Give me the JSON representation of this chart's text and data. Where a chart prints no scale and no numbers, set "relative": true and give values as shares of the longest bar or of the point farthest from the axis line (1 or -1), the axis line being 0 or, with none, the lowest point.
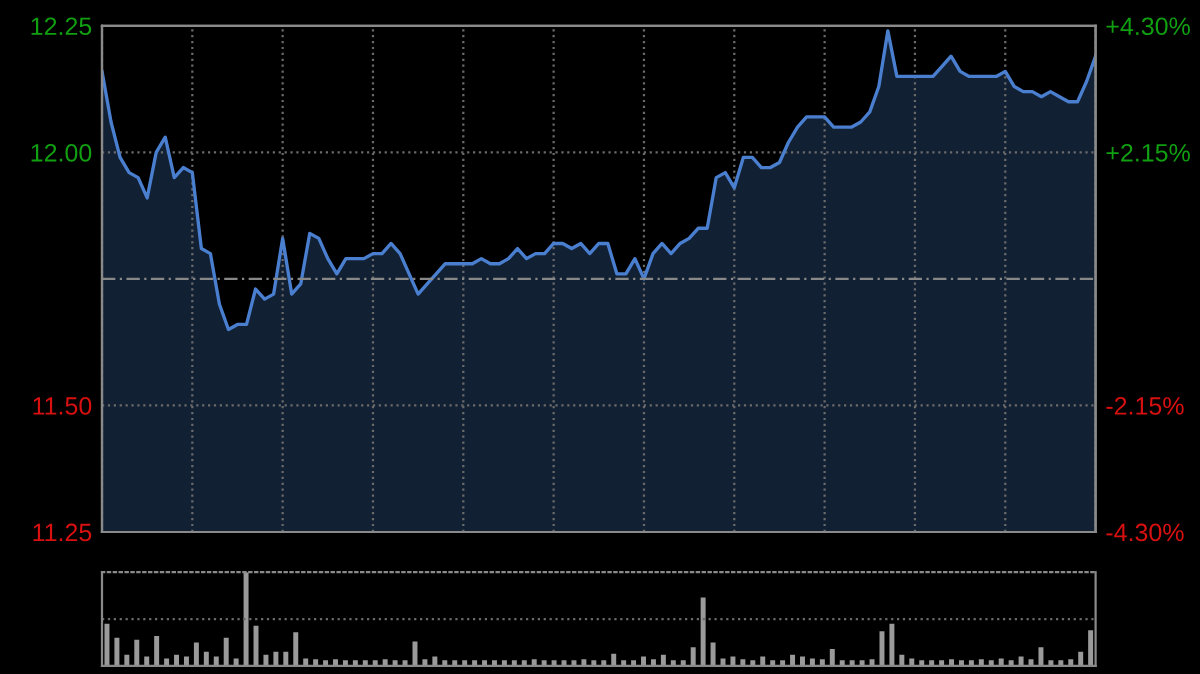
{
  "chart_data": [
    {
      "type": "area",
      "color": "#4a7fd0",
      "categories": [
        null,
        null,
        null,
        null,
        null,
        null,
        null,
        null,
        null,
        null,
        null,
        null,
        null,
        null,
        null,
        null,
        null,
        null,
        null,
        null,
        null,
        null,
        null,
        null,
        null,
        null,
        null,
        null,
        null,
        null,
        null,
        null,
        null,
        null,
        null,
        null,
        null,
        null,
        null,
        null,
        null,
        null,
        null,
        null,
        null,
        null,
        null,
        null,
        null,
        null,
        null,
        null,
        null,
        null,
        null,
        null,
        null,
        null,
        null,
        null,
        null,
        null,
        null,
        null,
        null,
        null,
        null,
        null,
        null,
        null,
        null,
        null,
        null,
        null,
        null,
        null,
        null,
        null,
        null,
        null,
        null,
        null,
        null,
        null,
        null,
        null,
        null,
        null,
        null,
        null,
        null,
        null,
        null,
        null,
        null,
        null,
        null,
        null,
        null,
        null,
        null,
        null,
        null,
        null,
        null,
        null,
        null,
        null,
        null,
        null,
        null
      ],
      "values": [
        12.16,
        12.06,
        11.99,
        11.96,
        11.95,
        11.91,
        12.0,
        12.03,
        11.95,
        11.97,
        11.96,
        11.81,
        11.8,
        11.7,
        11.65,
        11.66,
        11.66,
        11.73,
        11.71,
        11.72,
        11.83,
        11.72,
        11.74,
        11.84,
        11.83,
        11.79,
        11.76,
        11.79,
        11.79,
        11.79,
        11.8,
        11.8,
        11.82,
        11.8,
        11.76,
        11.72,
        11.74,
        11.76,
        11.78,
        11.78,
        11.78,
        11.78,
        11.79,
        11.78,
        11.78,
        11.79,
        11.81,
        11.79,
        11.8,
        11.8,
        11.82,
        11.82,
        11.81,
        11.82,
        11.8,
        11.82,
        11.82,
        11.76,
        11.76,
        11.79,
        11.75,
        11.8,
        11.82,
        11.8,
        11.82,
        11.83,
        11.85,
        11.85,
        11.95,
        11.96,
        11.93,
        11.99,
        11.99,
        11.97,
        11.97,
        11.98,
        12.02,
        12.05,
        12.07,
        12.07,
        12.07,
        12.05,
        12.05,
        12.05,
        12.06,
        12.08,
        12.13,
        12.24,
        12.15,
        12.15,
        12.15,
        12.15,
        12.15,
        12.17,
        12.19,
        12.16,
        12.15,
        12.15,
        12.15,
        12.15,
        12.16,
        12.13,
        12.12,
        12.12,
        12.11,
        12.12,
        12.11,
        12.1,
        12.1,
        12.14,
        12.19
      ],
      "ylim": [
        11.25,
        12.25
      ],
      "yticks": [
        12.25,
        {
          "value": 12.0,
          "label": "12.00"
        },
        {
          "value": 11.5,
          "label": "11.50"
        },
        11.25
      ],
      "y2lim": [
        -4.3,
        4.3
      ],
      "y2ticks": [
        {
          "value": 4.3,
          "label": "+4.30%"
        },
        {
          "value": 2.15,
          "label": "+2.15%"
        },
        {
          "value": -2.15,
          "label": "-2.15%"
        },
        {
          "value": -4.3,
          "label": "-4.30%"
        }
      ],
      "ref_lines": [
        {
          "axis": "y",
          "value": 11.75,
          "color": "#888888",
          "line_style": "dashed"
        }
      ],
      "grid": true
    },
    {
      "type": "bar",
      "color": "#9a9a9a",
      "relative": true,
      "ref_lines": [
        {
          "axis": "y",
          "value": 0.5,
          "color": "#6a6a6a",
          "line_style": "dotted"
        }
      ],
      "categories": [
        null,
        null,
        null,
        null,
        null,
        null,
        null,
        null,
        null,
        null,
        null,
        null,
        null,
        null,
        null,
        null,
        null,
        null,
        null,
        null,
        null,
        null,
        null,
        null,
        null,
        null,
        null,
        null,
        null,
        null,
        null,
        null,
        null,
        null,
        null,
        null,
        null,
        null,
        null,
        null,
        null,
        null,
        null,
        null,
        null,
        null,
        null,
        null,
        null,
        null,
        null,
        null,
        null,
        null,
        null,
        null,
        null,
        null,
        null,
        null,
        null,
        null,
        null,
        null,
        null,
        null,
        null,
        null,
        null,
        null,
        null,
        null,
        null,
        null,
        null,
        null,
        null,
        null,
        null,
        null,
        null,
        null,
        null,
        null,
        null,
        null,
        null,
        null,
        null,
        null,
        null,
        null,
        null,
        null,
        null,
        null,
        null,
        null,
        null,
        null
      ],
      "values": [
        0.45,
        0.3,
        0.12,
        0.28,
        0.1,
        0.32,
        0.08,
        0.12,
        0.1,
        0.25,
        0.15,
        0.1,
        0.3,
        0.08,
        1.0,
        0.43,
        0.12,
        0.15,
        0.15,
        0.36,
        0.08,
        0.07,
        0.06,
        0.07,
        0.06,
        0.06,
        0.06,
        0.06,
        0.07,
        0.06,
        0.06,
        0.26,
        0.07,
        0.1,
        0.06,
        0.06,
        0.06,
        0.06,
        0.06,
        0.06,
        0.06,
        0.06,
        0.06,
        0.07,
        0.06,
        0.06,
        0.06,
        0.06,
        0.07,
        0.06,
        0.06,
        0.13,
        0.06,
        0.06,
        0.1,
        0.07,
        0.12,
        0.06,
        0.06,
        0.2,
        0.73,
        0.25,
        0.08,
        0.1,
        0.07,
        0.06,
        0.1,
        0.06,
        0.06,
        0.12,
        0.1,
        0.08,
        0.07,
        0.18,
        0.06,
        0.06,
        0.06,
        0.07,
        0.37,
        0.45,
        0.12,
        0.08,
        0.06,
        0.06,
        0.06,
        0.07,
        0.06,
        0.06,
        0.07,
        0.06,
        0.08,
        0.06,
        0.1,
        0.07,
        0.2,
        0.06,
        0.06,
        0.07,
        0.15,
        0.38
      ]
    }
  ]
}
